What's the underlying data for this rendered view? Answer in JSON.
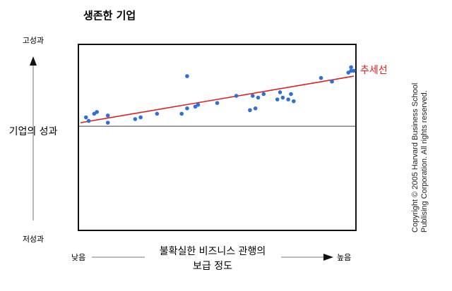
{
  "chart_data": {
    "type": "scatter",
    "title": "생존한 기업",
    "ylabel": "기업의 성과",
    "y_high_label": "고성과",
    "y_low_label": "저성과",
    "xlabel_line1": "불확실한 비즈니스 관행의",
    "xlabel_line2": "보급 정도",
    "x_low_label": "낮음",
    "x_high_label": "높음",
    "trend_label": "추세선",
    "xlim": [
      0,
      100
    ],
    "ylim": [
      0,
      100
    ],
    "baseline_y": 57,
    "trend": {
      "x0": 0,
      "y0": 59,
      "x1": 100,
      "y1": 85
    },
    "points": [
      {
        "x": 2,
        "y": 62
      },
      {
        "x": 3,
        "y": 60
      },
      {
        "x": 5,
        "y": 64
      },
      {
        "x": 6,
        "y": 65
      },
      {
        "x": 10,
        "y": 59
      },
      {
        "x": 10,
        "y": 63
      },
      {
        "x": 20,
        "y": 61
      },
      {
        "x": 22,
        "y": 62
      },
      {
        "x": 28,
        "y": 64
      },
      {
        "x": 37,
        "y": 64
      },
      {
        "x": 39,
        "y": 67
      },
      {
        "x": 39,
        "y": 85
      },
      {
        "x": 42,
        "y": 68
      },
      {
        "x": 43,
        "y": 69
      },
      {
        "x": 50,
        "y": 70
      },
      {
        "x": 57,
        "y": 74
      },
      {
        "x": 62,
        "y": 66
      },
      {
        "x": 63,
        "y": 74
      },
      {
        "x": 64,
        "y": 67
      },
      {
        "x": 65,
        "y": 73
      },
      {
        "x": 67,
        "y": 75
      },
      {
        "x": 72,
        "y": 72
      },
      {
        "x": 73,
        "y": 76
      },
      {
        "x": 74,
        "y": 73
      },
      {
        "x": 76,
        "y": 72
      },
      {
        "x": 77,
        "y": 75
      },
      {
        "x": 78,
        "y": 71
      },
      {
        "x": 88,
        "y": 84
      },
      {
        "x": 92,
        "y": 82
      },
      {
        "x": 98,
        "y": 87
      },
      {
        "x": 99,
        "y": 90
      },
      {
        "x": 99,
        "y": 88
      },
      {
        "x": 100,
        "y": 88
      }
    ],
    "colors": {
      "points": "#2f6fd6",
      "trend": "#e02020",
      "baseline": "#777777",
      "frame": "#111111"
    }
  },
  "copyright_line1": "Copyright © 2005 Harvard Business School",
  "copyright_line2": "Publising Corporation. All rights reserved."
}
